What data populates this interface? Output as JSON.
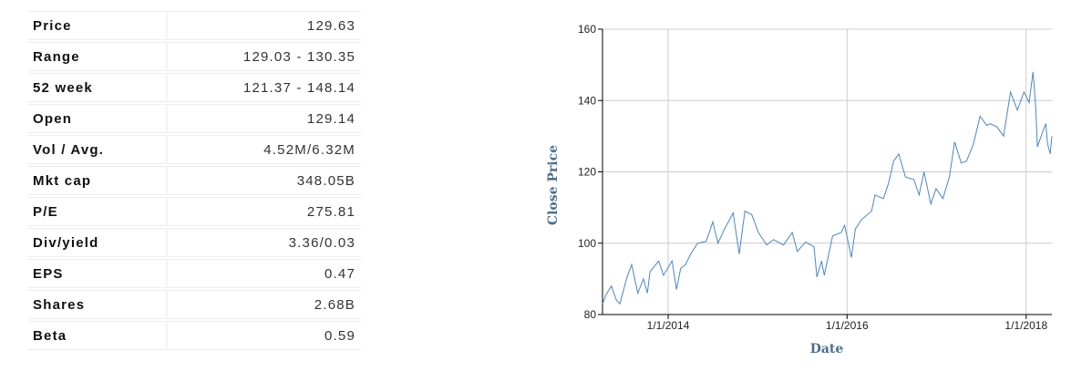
{
  "stats": [
    {
      "label": "Price",
      "value": "129.63"
    },
    {
      "label": "Range",
      "value": "129.03 - 130.35"
    },
    {
      "label": "52 week",
      "value": "121.37 - 148.14"
    },
    {
      "label": "Open",
      "value": "129.14"
    },
    {
      "label": "Vol / Avg.",
      "value": "4.52M/6.32M"
    },
    {
      "label": "Mkt cap",
      "value": "348.05B"
    },
    {
      "label": "P/E",
      "value": "275.81"
    },
    {
      "label": "Div/yield",
      "value": "3.36/0.03"
    },
    {
      "label": "EPS",
      "value": "0.47"
    },
    {
      "label": "Shares",
      "value": "2.68B"
    },
    {
      "label": "Beta",
      "value": "0.59"
    }
  ],
  "chart_data": {
    "type": "line",
    "xlabel": "Date",
    "ylabel": "Close Price",
    "ylim": [
      80,
      160
    ],
    "xlim": [
      "2013-04-08",
      "2018-04-16"
    ],
    "yticks": [
      "80",
      "100",
      "120",
      "140",
      "160"
    ],
    "xticks": [
      {
        "date": "2014-01-01",
        "label": "1/1/2014"
      },
      {
        "date": "2016-01-01",
        "label": "1/1/2016"
      },
      {
        "date": "2018-01-01",
        "label": "1/1/2018"
      }
    ],
    "grid": true,
    "line_color": "#4a86c8",
    "x": [
      "2013-04-08",
      "2013-04-22",
      "2013-05-14",
      "2013-06-04",
      "2013-06-18",
      "2013-07-15",
      "2013-08-05",
      "2013-08-30",
      "2013-09-22",
      "2013-10-08",
      "2013-10-19",
      "2013-11-23",
      "2013-12-13",
      "2014-01-17",
      "2014-02-04",
      "2014-02-21",
      "2014-03-13",
      "2014-04-03",
      "2014-05-01",
      "2014-06-05",
      "2014-07-02",
      "2014-07-23",
      "2014-08-19",
      "2014-09-23",
      "2014-10-18",
      "2014-11-10",
      "2014-12-08",
      "2015-01-04",
      "2015-02-07",
      "2015-03-07",
      "2015-04-17",
      "2015-05-22",
      "2015-06-12",
      "2015-07-16",
      "2015-08-19",
      "2015-08-31",
      "2015-09-19",
      "2015-09-30",
      "2015-11-03",
      "2015-12-08",
      "2015-12-22",
      "2016-01-19",
      "2016-02-04",
      "2016-02-29",
      "2016-04-10",
      "2016-04-24",
      "2016-05-29",
      "2016-06-19",
      "2016-07-09",
      "2016-07-30",
      "2016-08-26",
      "2016-09-30",
      "2016-10-21",
      "2016-11-10",
      "2016-12-08",
      "2016-12-29",
      "2017-01-26",
      "2017-02-22",
      "2017-03-15",
      "2017-04-11",
      "2017-05-02",
      "2017-05-30",
      "2017-06-27",
      "2017-07-24",
      "2017-08-07",
      "2017-09-04",
      "2017-10-01",
      "2017-10-29",
      "2017-11-26",
      "2017-12-23",
      "2018-01-13",
      "2018-01-29",
      "2018-02-09",
      "2018-02-16",
      "2018-03-08",
      "2018-03-22",
      "2018-03-29",
      "2018-04-09",
      "2018-04-16"
    ],
    "y": [
      83,
      85.5,
      88,
      84,
      83,
      90,
      94,
      86,
      90,
      86,
      92,
      95,
      91,
      95,
      87,
      93,
      94,
      97,
      100,
      100.5,
      106,
      100,
      104,
      108.5,
      97,
      109,
      108,
      103,
      99.5,
      101,
      99.5,
      103,
      97.7,
      100.3,
      99,
      90.5,
      95,
      91,
      102,
      103,
      105,
      96,
      104,
      106.6,
      109,
      113.5,
      112.5,
      117,
      123,
      125,
      118.6,
      117.8,
      113.5,
      120,
      111,
      115.3,
      112.5,
      118.6,
      128.4,
      122.5,
      123,
      127.6,
      135.6,
      133,
      133.5,
      132.6,
      130,
      142.4,
      137.3,
      142.4,
      139.4,
      148,
      138,
      127,
      131,
      133.5,
      128,
      125,
      130
    ]
  }
}
